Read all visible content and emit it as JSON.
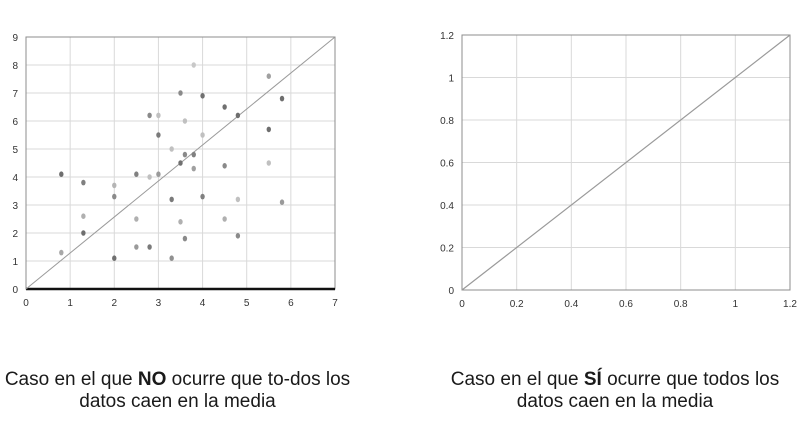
{
  "chart_data": [
    {
      "type": "scatter",
      "title": "",
      "xlabel": "",
      "ylabel": "",
      "xlim": [
        0,
        7
      ],
      "ylim": [
        0,
        9
      ],
      "x_ticks": [
        "0",
        "1",
        "2",
        "3",
        "4",
        "5",
        "6",
        "7"
      ],
      "y_ticks": [
        "0",
        "1",
        "2",
        "3",
        "4",
        "5",
        "6",
        "7",
        "8",
        "9"
      ],
      "grid": true,
      "reference_line": {
        "x": [
          0,
          7
        ],
        "y": [
          0,
          9
        ]
      },
      "series": [
        {
          "points": [
            [
              0.8,
              4.1
            ],
            [
              0.8,
              1.3
            ],
            [
              1.3,
              3.8
            ],
            [
              1.3,
              2.6
            ],
            [
              1.3,
              2.0
            ],
            [
              2.0,
              3.7
            ],
            [
              2.0,
              3.3
            ],
            [
              2.0,
              1.1
            ],
            [
              2.5,
              4.1
            ],
            [
              2.5,
              2.5
            ],
            [
              2.5,
              1.5
            ],
            [
              2.8,
              6.2
            ],
            [
              2.8,
              4.0
            ],
            [
              2.8,
              1.5
            ],
            [
              3.0,
              6.2
            ],
            [
              3.0,
              5.5
            ],
            [
              3.0,
              4.1
            ],
            [
              3.3,
              5.0
            ],
            [
              3.3,
              3.2
            ],
            [
              3.3,
              1.1
            ],
            [
              3.5,
              7.0
            ],
            [
              3.5,
              4.5
            ],
            [
              3.5,
              2.4
            ],
            [
              3.6,
              6.0
            ],
            [
              3.6,
              4.8
            ],
            [
              3.6,
              1.8
            ],
            [
              3.8,
              8.0
            ],
            [
              3.8,
              4.8
            ],
            [
              3.8,
              4.3
            ],
            [
              4.0,
              6.9
            ],
            [
              4.0,
              5.5
            ],
            [
              4.0,
              3.3
            ],
            [
              4.5,
              6.5
            ],
            [
              4.5,
              4.4
            ],
            [
              4.5,
              2.5
            ],
            [
              4.8,
              6.2
            ],
            [
              4.8,
              3.2
            ],
            [
              4.8,
              1.9
            ],
            [
              5.5,
              7.6
            ],
            [
              5.5,
              5.7
            ],
            [
              5.5,
              4.5
            ],
            [
              5.8,
              6.8
            ],
            [
              5.8,
              3.1
            ]
          ],
          "shades": [
            "#6e6e6e",
            "#a8a8a8",
            "#808080",
            "#b0b0b0",
            "#6e6e6e",
            "#b5b5b5",
            "#8a8a8a",
            "#707070",
            "#808080",
            "#b0b0b0",
            "#9a9a9a",
            "#8a8a8a",
            "#c0c0c0",
            "#7a7a7a",
            "#c0c0c0",
            "#7a7a7a",
            "#9a9a9a",
            "#c0c0c0",
            "#7a7a7a",
            "#909090",
            "#8a8a8a",
            "#707070",
            "#b0b0b0",
            "#c0c0c0",
            "#8a8a8a",
            "#8a8a8a",
            "#c8c8c8",
            "#808080",
            "#a0a0a0",
            "#707070",
            "#c0c0c0",
            "#808080",
            "#707070",
            "#8a8a8a",
            "#b0b0b0",
            "#6e6e6e",
            "#c0c0c0",
            "#8a8a8a",
            "#a0a0a0",
            "#6e6e6e",
            "#c0c0c0",
            "#6e6e6e",
            "#9a9a9a"
          ]
        }
      ]
    },
    {
      "type": "line",
      "title": "",
      "xlabel": "",
      "ylabel": "",
      "xlim": [
        0,
        1.2
      ],
      "ylim": [
        0,
        1.2
      ],
      "x_ticks": [
        "0",
        "0.2",
        "0.4",
        "0.6",
        "0.8",
        "1",
        "1.2"
      ],
      "y_ticks": [
        "0",
        "0.2",
        "0.4",
        "0.6",
        "0.8",
        "1",
        "1.2"
      ],
      "grid": true,
      "series": [
        {
          "x": [
            0,
            1.2
          ],
          "y": [
            0,
            1.2
          ]
        }
      ]
    }
  ],
  "captions": {
    "left": {
      "before": "Caso en el que ",
      "bold": "NO",
      "after": " ocurre que to-dos los datos caen en la media"
    },
    "right": {
      "before": "Caso en el que ",
      "bold": "SÍ",
      "after": " ocurre que todos los datos caen en la media"
    }
  },
  "colors": {
    "grid": "#d9d9d9",
    "frame": "#8c8c8c",
    "reference_line": "#9a9a9a",
    "axis_base": "#111111"
  }
}
